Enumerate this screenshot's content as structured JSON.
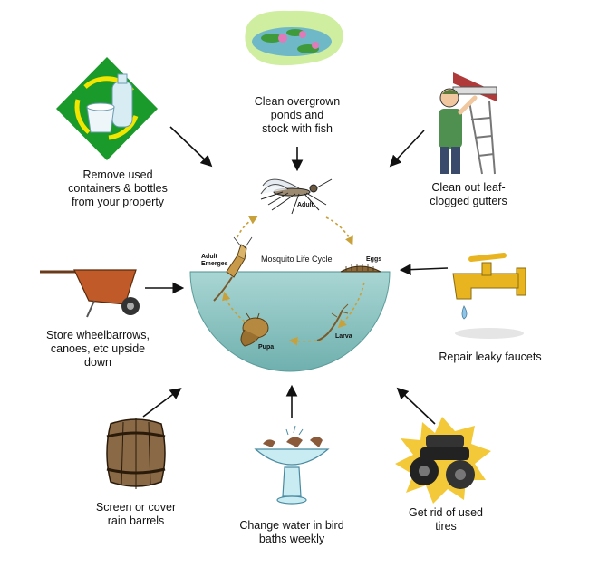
{
  "center": {
    "title": "Mosquito Life Cycle",
    "stages": {
      "adult": "Adult",
      "eggs": "Eggs",
      "larva": "Larva",
      "pupa": "Pupa",
      "emerges_1": "Adult",
      "emerges_2": "Emerges"
    }
  },
  "tips": {
    "ponds": [
      "Clean overgrown",
      "ponds and",
      "stock with fish"
    ],
    "gutters": [
      "Clean out leaf-",
      "clogged gutters"
    ],
    "faucets": [
      "Repair leaky faucets"
    ],
    "tires": [
      "Get rid of used",
      "tires"
    ],
    "birdbath": [
      "Change water in bird",
      "baths weekly"
    ],
    "barrels": [
      "Screen or cover",
      "rain barrels"
    ],
    "wheelbarrows": [
      "Store wheelbarrows,",
      "canoes, etc upside",
      "down"
    ],
    "containers": [
      "Remove used",
      "containers & bottles",
      "from your property"
    ]
  },
  "colors": {
    "water": "#8fc6c4",
    "recycle_bg": "#1a9a2a",
    "recycle_arrows": "#f2e600",
    "faucet": "#e8b520",
    "wheelbarrow": "#c05a28",
    "pond_bg": "#cfeea0",
    "starburst": "#f3c93a"
  },
  "icons": [
    "recycle-bottles-icon",
    "lily-pond-icon",
    "gutter-worker-icon",
    "leaky-faucet-icon",
    "tire-pile-icon",
    "bird-bath-icon",
    "rain-barrel-icon",
    "wheelbarrow-icon",
    "mosquito-icon"
  ]
}
